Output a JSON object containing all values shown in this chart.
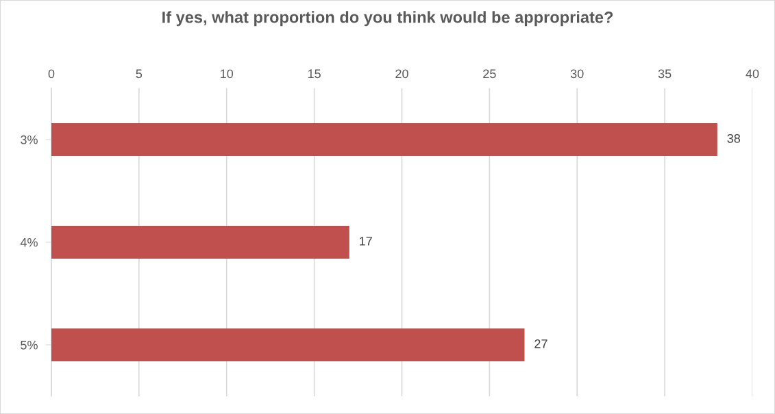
{
  "chart_data": {
    "type": "bar",
    "orientation": "horizontal",
    "title": "If yes, what proportion do you think would be appropriate?",
    "categories": [
      "3%",
      "4%",
      "5%"
    ],
    "values": [
      38,
      17,
      27
    ],
    "color": "#c0504d",
    "xlim": [
      0,
      40
    ],
    "xticks": [
      0,
      5,
      10,
      15,
      20,
      25,
      30,
      35,
      40
    ],
    "grid": "x",
    "data_labels": true
  }
}
